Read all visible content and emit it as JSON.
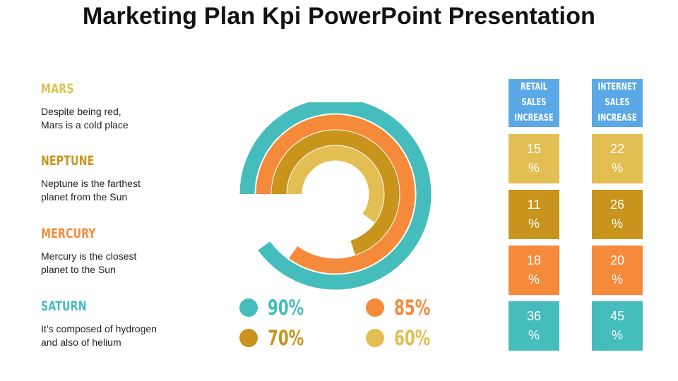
{
  "title": "Marketing Plan Kpi PowerPoint Presentation",
  "colors": {
    "teal": "#44bdbc",
    "orange": "#f58a3b",
    "darkgold": "#c8941c",
    "gold": "#e3be52",
    "header_blue": "#5aa9e6"
  },
  "planets": [
    {
      "name": "MARS",
      "desc": "Despite being red,\nMars is a cold place",
      "color": "#e3be52"
    },
    {
      "name": "NEPTUNE",
      "desc": "Neptune is the farthest\nplanet from the Sun",
      "color": "#c8941c"
    },
    {
      "name": "MERCURY",
      "desc": "Mercury is the closest\nplanet to the Sun",
      "color": "#f58a3b"
    },
    {
      "name": "SATURN",
      "desc": "It’s composed of hydrogen\nand also of helium",
      "color": "#44bdbc"
    }
  ],
  "rings": [
    {
      "value": 90,
      "color": "#44bdbc"
    },
    {
      "value": 85,
      "color": "#f58a3b"
    },
    {
      "value": 70,
      "color": "#c8941c"
    },
    {
      "value": 60,
      "color": "#e3be52"
    }
  ],
  "legend": [
    {
      "label": "90%",
      "color": "#44bdbc"
    },
    {
      "label": "85%",
      "color": "#f58a3b"
    },
    {
      "label": "70%",
      "color": "#c8941c"
    },
    {
      "label": "60%",
      "color": "#e3be52"
    }
  ],
  "table": {
    "columns": [
      {
        "header": [
          "RETAIL",
          "SALES",
          "INCREASE"
        ],
        "values": [
          "15",
          "11",
          "18",
          "36"
        ]
      },
      {
        "header": [
          "INTERNET",
          "SALES",
          "INCREASE"
        ],
        "values": [
          "22",
          "26",
          "20",
          "45"
        ]
      }
    ],
    "unit": "%",
    "row_colors": [
      "#e3be52",
      "#c8941c",
      "#f58a3b",
      "#44bdbc"
    ]
  }
}
